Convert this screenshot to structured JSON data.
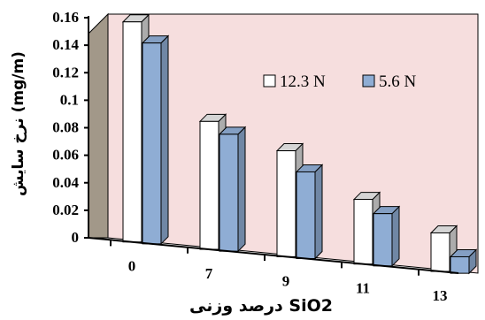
{
  "chart_data": {
    "type": "bar",
    "categories": [
      "0",
      "7",
      "9",
      "11",
      "13"
    ],
    "series": [
      {
        "name": "12.3 N",
        "values": [
          0.16,
          0.093,
          0.077,
          0.047,
          0.028
        ],
        "color": "#ffffff"
      },
      {
        "name": "5.6 N",
        "values": [
          0.146,
          0.085,
          0.063,
          0.038,
          0.012
        ],
        "color": "#8fadd4"
      }
    ],
    "ylabel": "نرخ سایش (mg/m)",
    "xlabel": "درصد وزنی SiO2",
    "ylim": [
      0,
      0.16
    ],
    "yticks": [
      "0",
      "0.02",
      "0.04",
      "0.06",
      "0.08",
      "0.1",
      "0.12",
      "0.14",
      "0.16"
    ],
    "grid": false,
    "legend_position": "top-right",
    "background_wall_color": "#f6dede",
    "side_wall_color": "#a29889"
  }
}
